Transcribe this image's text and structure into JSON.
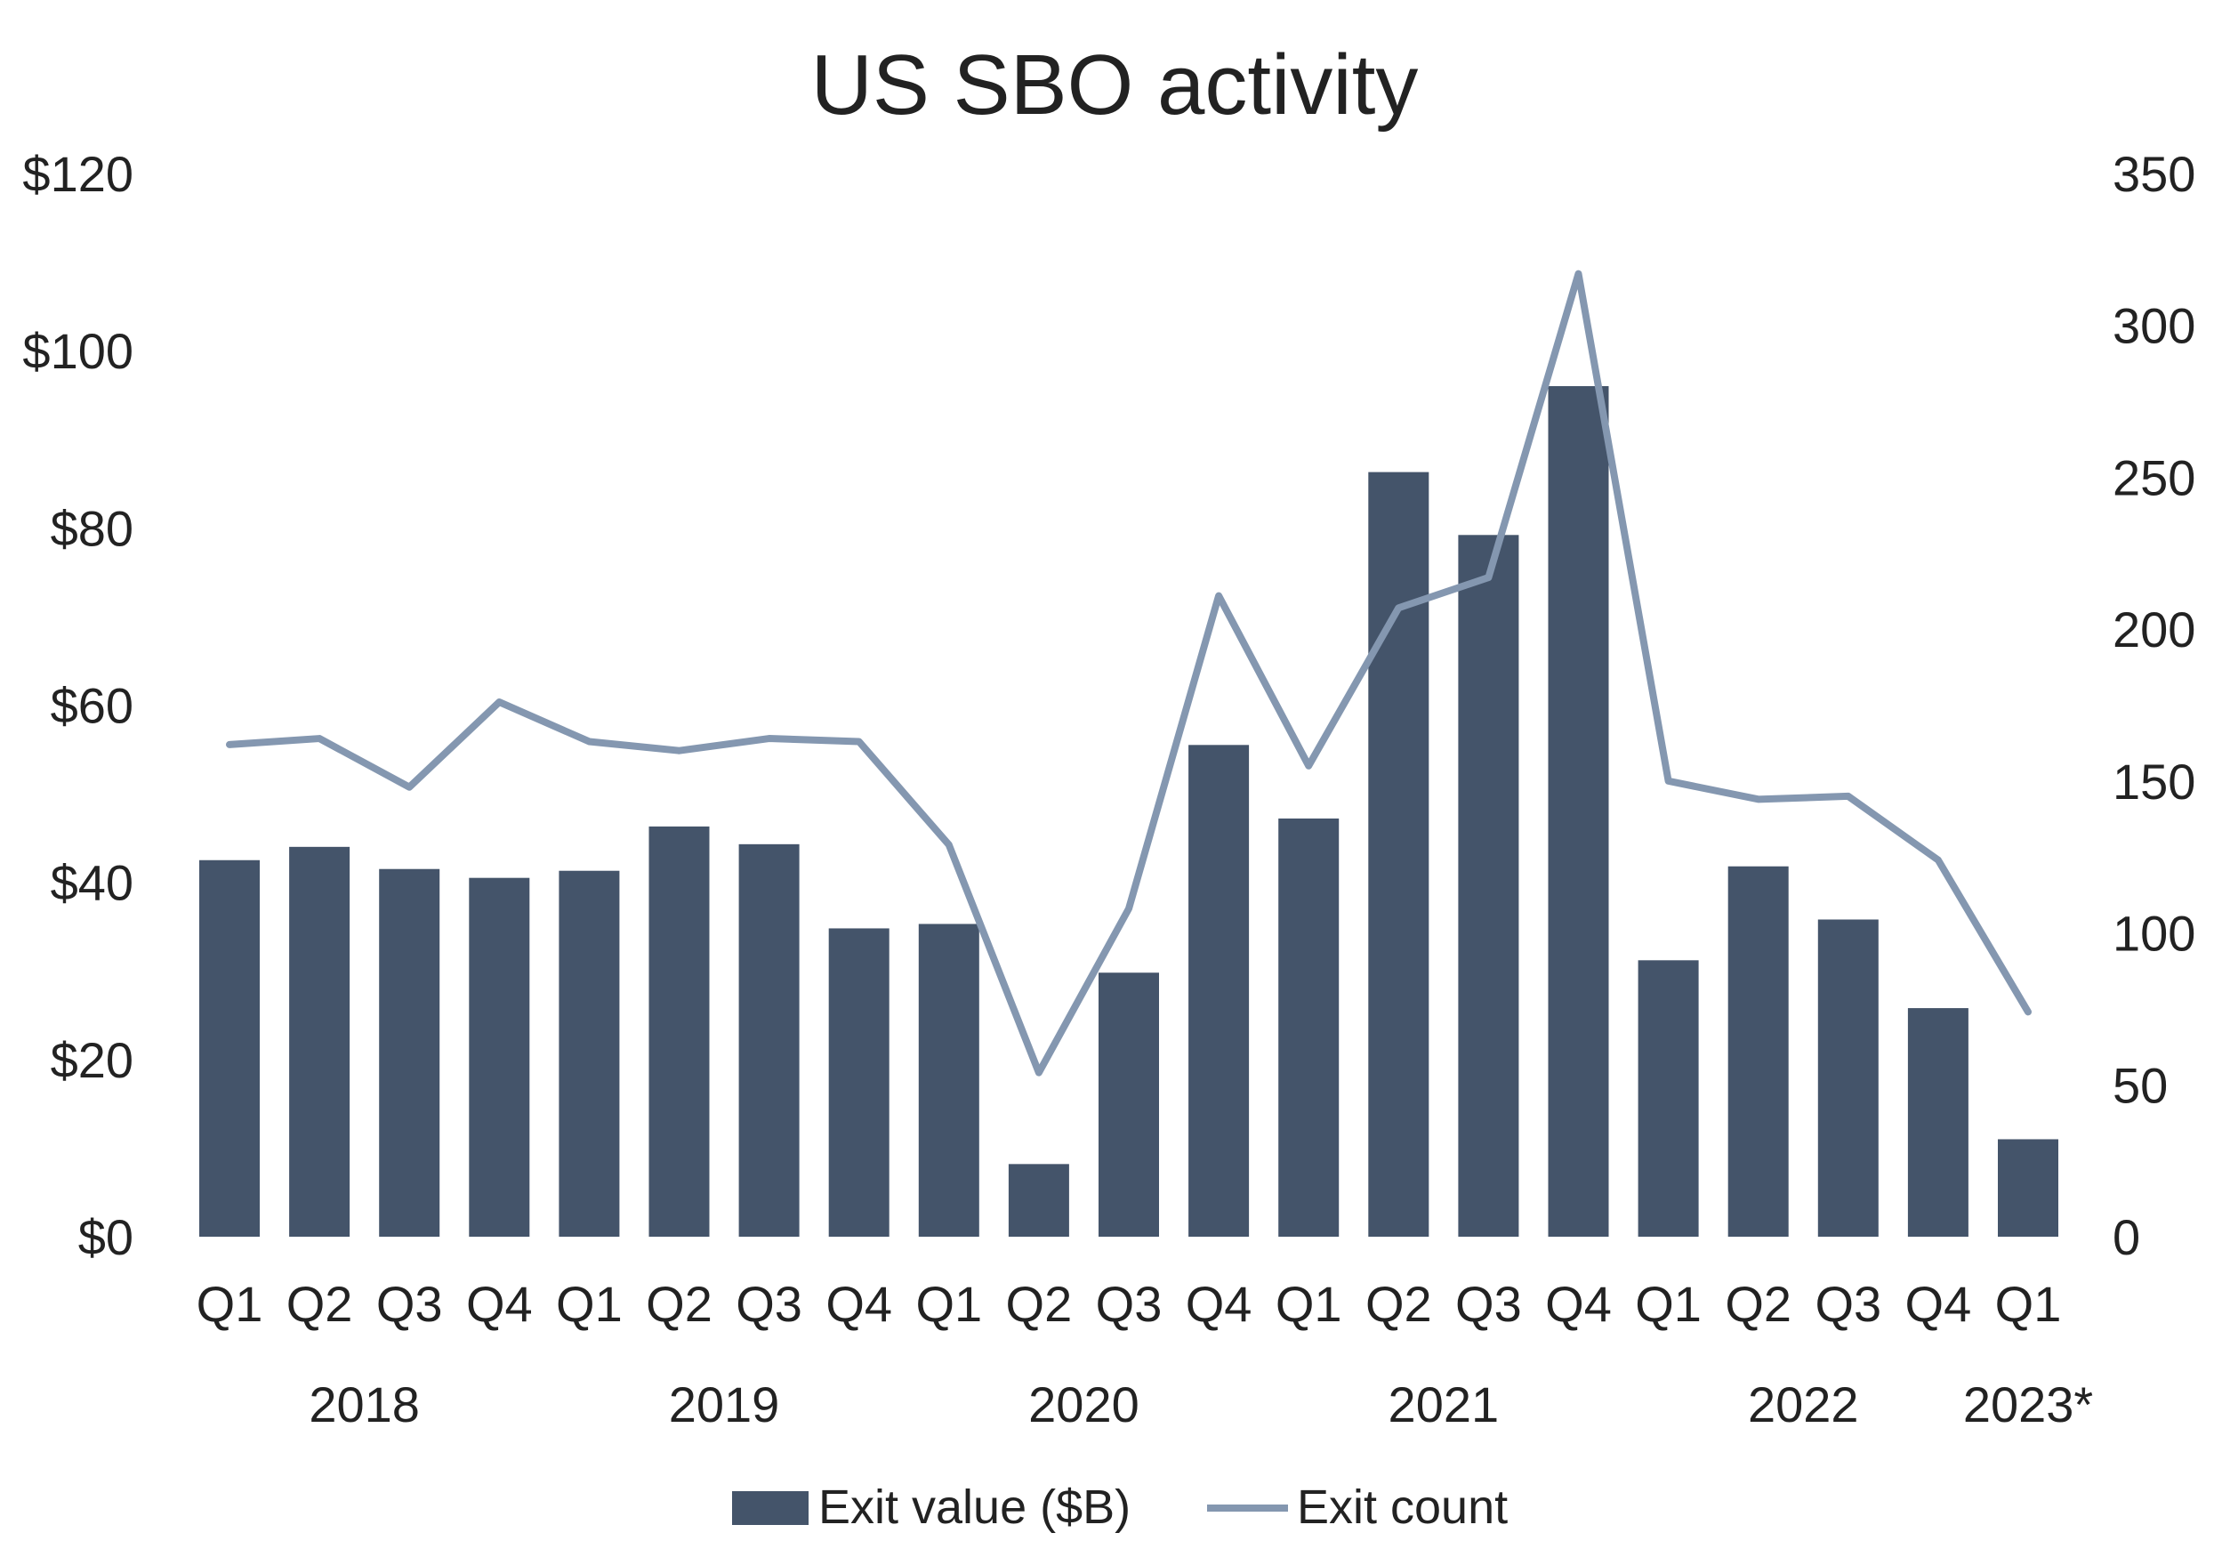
{
  "chart_data": {
    "type": "bar",
    "title": "US SBO activity",
    "categories": [
      "Q1",
      "Q2",
      "Q3",
      "Q4",
      "Q1",
      "Q2",
      "Q3",
      "Q4",
      "Q1",
      "Q2",
      "Q3",
      "Q4",
      "Q1",
      "Q2",
      "Q3",
      "Q4",
      "Q1",
      "Q2",
      "Q3",
      "Q4",
      "Q1"
    ],
    "year_groups": [
      {
        "label": "2018",
        "start": 0,
        "end": 3
      },
      {
        "label": "2019",
        "start": 4,
        "end": 7
      },
      {
        "label": "2020",
        "start": 8,
        "end": 11
      },
      {
        "label": "2021",
        "start": 12,
        "end": 15
      },
      {
        "label": "2022",
        "start": 16,
        "end": 19
      },
      {
        "label": "2023*",
        "start": 20,
        "end": 20
      }
    ],
    "series": [
      {
        "name": "Exit value ($B)",
        "type": "bar",
        "axis": "left",
        "color": "#44546A",
        "values": [
          42.5,
          44,
          41.5,
          40.5,
          41.3,
          46.3,
          44.3,
          34.8,
          35.3,
          8.2,
          29.8,
          55.5,
          47.2,
          86.3,
          79.2,
          96,
          31.2,
          41.8,
          35.8,
          25.8,
          11
        ]
      },
      {
        "name": "Exit count",
        "type": "line",
        "axis": "right",
        "color": "#8497B0",
        "values": [
          162,
          164,
          148,
          176,
          163,
          160,
          164,
          163,
          129,
          54,
          108,
          211,
          155,
          207,
          217,
          317,
          150,
          144,
          145,
          124,
          74
        ]
      }
    ],
    "y_left": {
      "ticks": [
        "$0",
        "$20",
        "$40",
        "$60",
        "$80",
        "$100",
        "$120"
      ],
      "min": 0,
      "max": 120
    },
    "y_right": {
      "ticks": [
        "0",
        "50",
        "100",
        "150",
        "200",
        "250",
        "300",
        "350"
      ],
      "min": 0,
      "max": 350
    },
    "grid": false,
    "legend_position": "bottom"
  }
}
